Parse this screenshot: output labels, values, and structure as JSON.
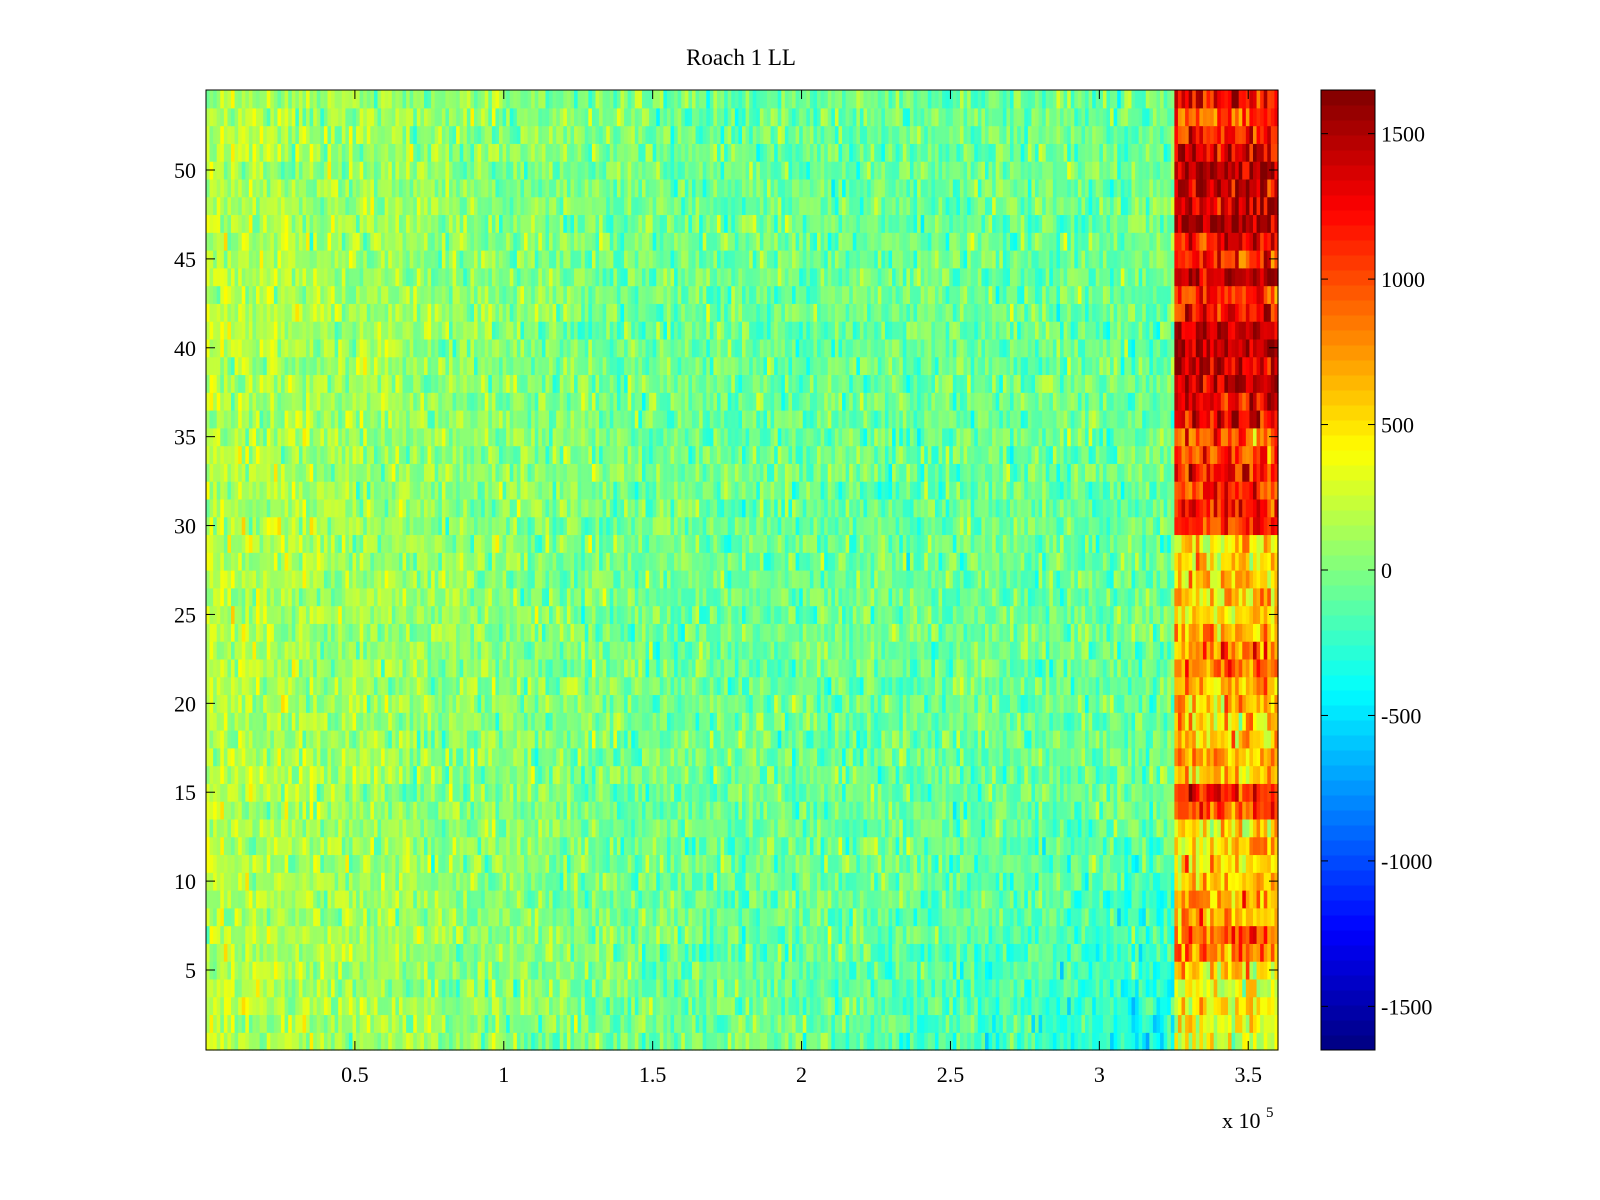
{
  "chart_data": {
    "type": "heatmap",
    "title": "Roach 1 LL",
    "xlabel": "",
    "ylabel": "",
    "x_multiplier_label": "x 10",
    "x_multiplier_exponent": "5",
    "xlim": [
      0,
      360000
    ],
    "ylim": [
      0.5,
      54.5
    ],
    "x_ticks": [
      50000,
      100000,
      150000,
      200000,
      250000,
      300000,
      350000
    ],
    "x_tick_labels": [
      "0.5",
      "1",
      "1.5",
      "2",
      "2.5",
      "3",
      "3.5"
    ],
    "y_ticks": [
      5,
      10,
      15,
      20,
      25,
      30,
      35,
      40,
      45,
      50
    ],
    "y_tick_labels": [
      "5",
      "10",
      "15",
      "20",
      "25",
      "30",
      "35",
      "40",
      "45",
      "50"
    ],
    "rows": 54,
    "colormap": "jet",
    "clim": [
      -1650,
      1650
    ],
    "colorbar_ticks": [
      1500,
      1000,
      500,
      0,
      -500,
      -1000,
      -1500
    ],
    "colorbar_tick_labels": [
      "1500",
      "1000",
      "500",
      "0",
      "-500",
      "-1000",
      "-1500"
    ],
    "stimulus_onset_x": 325000,
    "baseline_level_left": 180,
    "baseline_level_mid": -60,
    "baseline_level_right_low_rows": -380,
    "post_onset_row_levels": [
      300,
      300,
      450,
      300,
      550,
      900,
      1000,
      650,
      700,
      600,
      500,
      600,
      450,
      1050,
      1100,
      600,
      700,
      600,
      500,
      600,
      700,
      900,
      950,
      750,
      500,
      600,
      600,
      500,
      500,
      1100,
      1200,
      1100,
      1200,
      1000,
      900,
      1300,
      1250,
      1500,
      1450,
      1500,
      1400,
      1300,
      1100,
      1450,
      1150,
      1300,
      1550,
      1500,
      1400,
      1450,
      1350,
      1250,
      1000,
      1300
    ]
  }
}
